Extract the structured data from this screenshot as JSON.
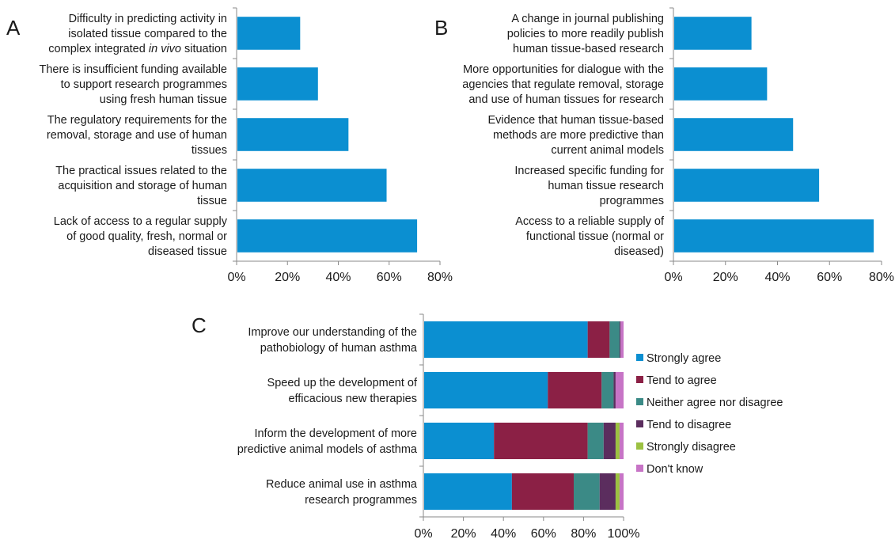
{
  "colors": {
    "bar": "#0b8fd1",
    "axis": "#8a8a8a",
    "text": "#1a1a1a"
  },
  "chart_data": [
    {
      "panel": "A",
      "type": "bar",
      "orientation": "horizontal",
      "xlim": [
        0,
        80
      ],
      "x_ticks": [
        "0%",
        "20%",
        "40%",
        "60%",
        "80%"
      ],
      "grid": false,
      "categories": [
        {
          "lines": [
            [
              {
                "t": "Difficulty in predicting activity in"
              }
            ],
            [
              {
                "t": "isolated tissue compared to the"
              }
            ],
            [
              {
                "t": "complex integrated "
              },
              {
                "t": "in vivo",
                "i": true
              },
              {
                "t": " situation"
              }
            ]
          ],
          "value": 25
        },
        {
          "lines": [
            [
              {
                "t": "There is insufficient funding available"
              }
            ],
            [
              {
                "t": "to support research programmes"
              }
            ],
            [
              {
                "t": "using fresh human tissue"
              }
            ]
          ],
          "value": 32
        },
        {
          "lines": [
            [
              {
                "t": "The regulatory requirements for the"
              }
            ],
            [
              {
                "t": "removal, storage and use of human"
              }
            ],
            [
              {
                "t": "tissues"
              }
            ]
          ],
          "value": 44
        },
        {
          "lines": [
            [
              {
                "t": "The practical issues related to the"
              }
            ],
            [
              {
                "t": "acquisition and storage of human"
              }
            ],
            [
              {
                "t": "tissue"
              }
            ]
          ],
          "value": 59
        },
        {
          "lines": [
            [
              {
                "t": "Lack of access to a regular supply"
              }
            ],
            [
              {
                "t": "of good quality, fresh, normal or"
              }
            ],
            [
              {
                "t": "diseased tissue"
              }
            ]
          ],
          "value": 71
        }
      ]
    },
    {
      "panel": "B",
      "type": "bar",
      "orientation": "horizontal",
      "xlim": [
        0,
        80
      ],
      "x_ticks": [
        "0%",
        "20%",
        "40%",
        "60%",
        "80%"
      ],
      "grid": false,
      "categories": [
        {
          "lines": [
            [
              {
                "t": "A change in journal publishing"
              }
            ],
            [
              {
                "t": "policies to more readily publish"
              }
            ],
            [
              {
                "t": "human tissue-based research"
              }
            ]
          ],
          "value": 30
        },
        {
          "lines": [
            [
              {
                "t": "More opportunities for dialogue with the"
              }
            ],
            [
              {
                "t": "agencies that regulate removal, storage"
              }
            ],
            [
              {
                "t": "and use of human tissues for research"
              }
            ]
          ],
          "value": 36
        },
        {
          "lines": [
            [
              {
                "t": "Evidence that human tissue-based"
              }
            ],
            [
              {
                "t": "methods are more predictive than"
              }
            ],
            [
              {
                "t": "current animal models"
              }
            ]
          ],
          "value": 46
        },
        {
          "lines": [
            [
              {
                "t": "Increased specific funding for"
              }
            ],
            [
              {
                "t": "human tissue research"
              }
            ],
            [
              {
                "t": "programmes"
              }
            ]
          ],
          "value": 56
        },
        {
          "lines": [
            [
              {
                "t": "Access to a reliable supply of"
              }
            ],
            [
              {
                "t": "functional tissue (normal or"
              }
            ],
            [
              {
                "t": "diseased)"
              }
            ]
          ],
          "value": 77
        }
      ]
    },
    {
      "panel": "C",
      "type": "bar",
      "orientation": "horizontal",
      "stacked": true,
      "xlim": [
        0,
        100
      ],
      "x_ticks": [
        "0%",
        "20%",
        "40%",
        "60%",
        "80%",
        "100%"
      ],
      "grid": false,
      "legend_position": "right",
      "categories": [
        {
          "lines": [
            [
              {
                "t": "Improve our understanding of the"
              }
            ],
            [
              {
                "t": "pathobiology of human asthma"
              }
            ]
          ]
        },
        {
          "lines": [
            [
              {
                "t": "Speed up the development of"
              }
            ],
            [
              {
                "t": "efficacious new therapies"
              }
            ]
          ]
        },
        {
          "lines": [
            [
              {
                "t": "Inform the development of more"
              }
            ],
            [
              {
                "t": "predictive animal models of asthma"
              }
            ]
          ]
        },
        {
          "lines": [
            [
              {
                "t": "Reduce animal use in asthma"
              }
            ],
            [
              {
                "t": "research programmes"
              }
            ]
          ]
        }
      ],
      "series": [
        {
          "name": "Strongly agree",
          "color": "#0b8fd1",
          "values": [
            82,
            62,
            35,
            44
          ]
        },
        {
          "name": "Tend to agree",
          "color": "#8b2045",
          "values": [
            11,
            27,
            47,
            31
          ]
        },
        {
          "name": "Neither agree nor disagree",
          "color": "#3b8a86",
          "values": [
            5,
            6,
            8,
            13
          ]
        },
        {
          "name": "Tend to disagree",
          "color": "#5b2d5e",
          "values": [
            0.5,
            1,
            6,
            8
          ]
        },
        {
          "name": "Strongly disagree",
          "color": "#9cc142",
          "values": [
            0,
            0,
            2,
            2
          ]
        },
        {
          "name": "Don't know",
          "color": "#c774c6",
          "values": [
            1.5,
            4,
            2,
            2
          ]
        }
      ]
    }
  ]
}
